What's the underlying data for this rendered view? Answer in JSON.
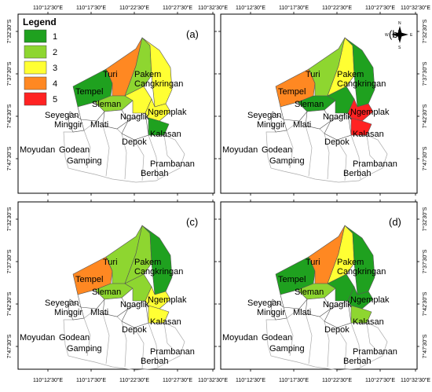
{
  "legend": {
    "title": "Legend",
    "items": [
      {
        "label": "1",
        "color": "#1fa11f"
      },
      {
        "label": "2",
        "color": "#8ed630"
      },
      {
        "label": "3",
        "color": "#ffff33"
      },
      {
        "label": "4",
        "color": "#ff8822"
      },
      {
        "label": "5",
        "color": "#ff2222"
      }
    ]
  },
  "axes": {
    "top_ticks": [
      "110°12'30\"E",
      "110°17'30\"E",
      "110°22'30\"E",
      "110°27'30\"E",
      "110°32'30\"E"
    ],
    "bottom_ticks": [
      "110°12'30\"E",
      "110°17'30\"E",
      "110°22'30\"E",
      "110°27'30\"E",
      "110°32'30\"E"
    ],
    "left_ticks": [
      "7°32'30\"S",
      "7°37'30\"S",
      "7°42'30\"S",
      "7°47'30\"S"
    ],
    "right_ticks": [
      "7°32'30\"S",
      "7°37'30\"S",
      "7°42'30\"S",
      "7°47'30\"S"
    ]
  },
  "compass": {
    "n": "N",
    "s": "S",
    "e": "E",
    "w": "W"
  },
  "panels": [
    {
      "label": "(a)",
      "colors": {
        "tempel": "#1fa11f",
        "turi": "#ff8822",
        "pakem": "#8ed630",
        "cangkringan": "#ffff33",
        "sleman": "#8ed630",
        "ngaglik": "#ffff33",
        "ngemplak": "#ffff33",
        "kalasan": "#1fa11f",
        "seyegan": "#ffffff",
        "minggir": "#ffffff",
        "mlati": "#ffffff",
        "depok": "#ffffff"
      }
    },
    {
      "label": "(b)",
      "colors": {
        "tempel": "#ff8822",
        "turi": "#8ed630",
        "pakem": "#ffff33",
        "cangkringan": "#1fa11f",
        "sleman": "#1fa11f",
        "ngaglik": "#1fa11f",
        "ngemplak": "#ff2222",
        "kalasan": "#ff2222",
        "seyegan": "#ffffff",
        "minggir": "#ffffff",
        "mlati": "#ffffff",
        "depok": "#ffffff"
      }
    },
    {
      "label": "(c)",
      "colors": {
        "tempel": "#ff8822",
        "turi": "#8ed630",
        "pakem": "#8ed630",
        "cangkringan": "#1fa11f",
        "sleman": "#8ed630",
        "ngaglik": "#8ed630",
        "ngemplak": "#ffff33",
        "kalasan": "#ffff33",
        "seyegan": "#ffffff",
        "minggir": "#ffffff",
        "mlati": "#ffffff",
        "depok": "#ffffff"
      }
    },
    {
      "label": "(d)",
      "colors": {
        "tempel": "#1fa11f",
        "turi": "#ff8822",
        "pakem": "#ffff33",
        "cangkringan": "#1fa11f",
        "sleman": "#8ed630",
        "ngaglik": "#1fa11f",
        "ngemplak": "#1fa11f",
        "kalasan": "#8ed630",
        "seyegan": "#ffffff",
        "minggir": "#ffffff",
        "mlati": "#ffffff",
        "depok": "#ffffff"
      }
    }
  ],
  "places": {
    "turi": "Turi",
    "pakem": "Pakem",
    "cangkringan": "Cangkringan",
    "tempel": "Tempel",
    "sleman": "Sleman",
    "seyegan": "Seyegan",
    "minggir": "Minggir",
    "mlati": "Mlati",
    "ngaglik": "Ngaglik",
    "ngemplak": "Ngemplak",
    "kalasan": "Kalasan",
    "depok": "Depok",
    "moyudan": "Moyudan",
    "godean": "Godean",
    "gamping": "Gamping",
    "prambanan": "Prambanan",
    "berbah": "Berbah"
  }
}
